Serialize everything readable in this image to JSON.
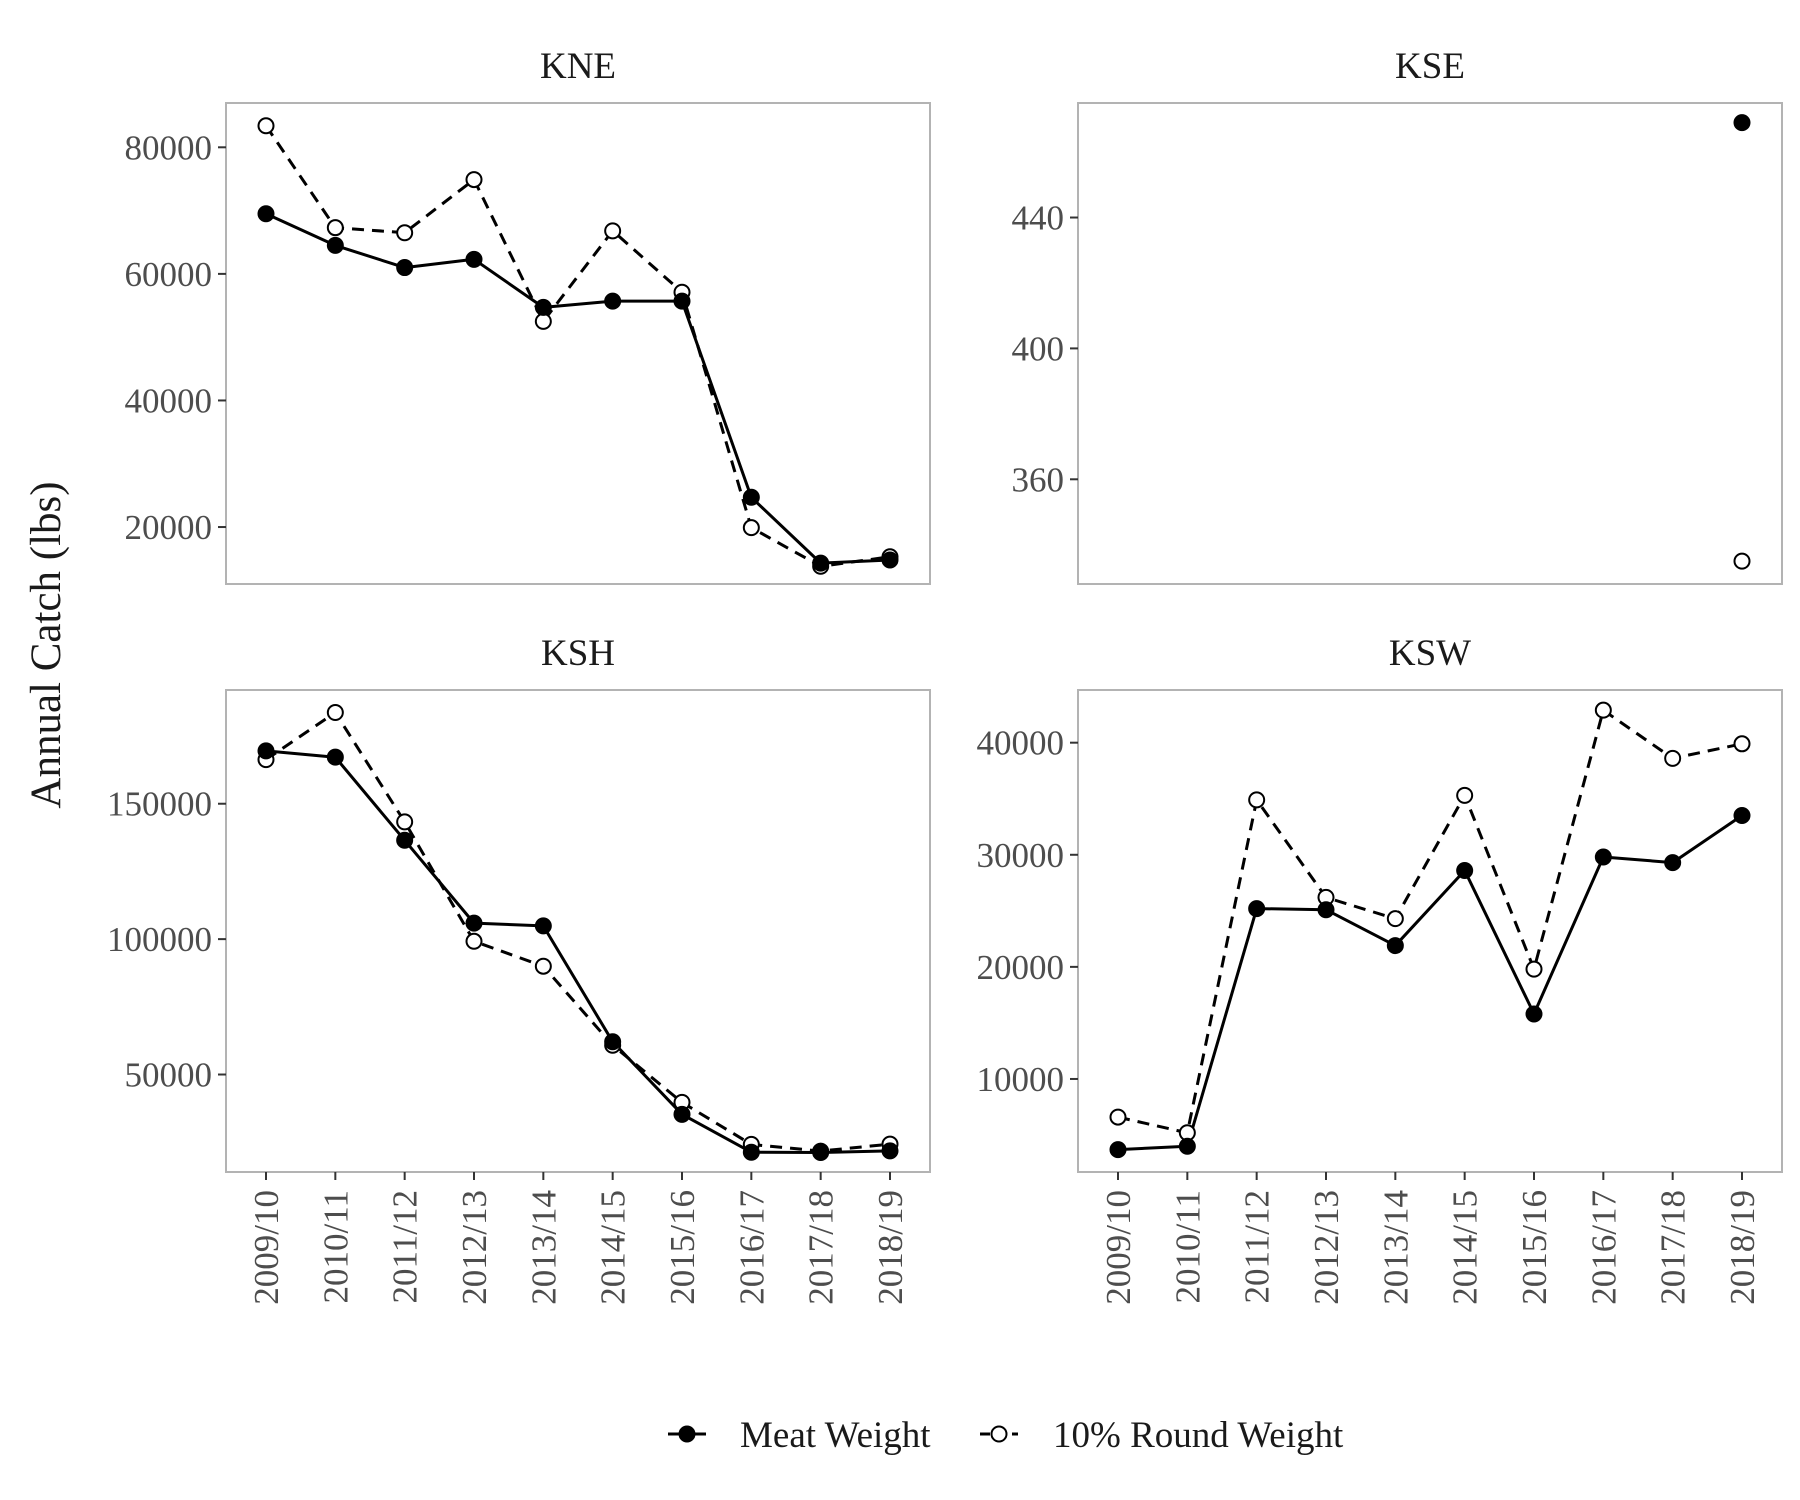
{
  "y_label": "Annual Catch (lbs)",
  "legend": {
    "items": [
      {
        "label": "Meat Weight",
        "marker": "filled-circle",
        "line": "solid"
      },
      {
        "label": "10% Round Weight",
        "marker": "open-circle",
        "line": "dashed"
      }
    ]
  },
  "colors": {
    "line": "#000000",
    "panel_border": "#b3b3b3",
    "tick_text": "#4d4d4d"
  },
  "chart_data": [
    {
      "type": "line",
      "title": "KNE",
      "categories": [
        "2009/10",
        "2010/11",
        "2011/12",
        "2012/13",
        "2013/14",
        "2014/15",
        "2015/16",
        "2016/17",
        "2017/18",
        "2018/19"
      ],
      "ylim": [
        11000,
        87000
      ],
      "y_ticks": [
        20000,
        40000,
        60000,
        80000
      ],
      "y_tick_labels": [
        "20000",
        "40000",
        "60000",
        "80000"
      ],
      "x_ticks_shown": false,
      "series": [
        {
          "name": "Meat Weight",
          "values": [
            69500,
            64500,
            61000,
            62300,
            54700,
            55700,
            55700,
            24700,
            14300,
            14800
          ]
        },
        {
          "name": "10% Round Weight",
          "values": [
            83400,
            67300,
            66500,
            74900,
            52500,
            66800,
            57100,
            19900,
            13800,
            15300
          ]
        }
      ]
    },
    {
      "type": "line",
      "title": "KSE",
      "categories": [
        "2009/10",
        "2010/11",
        "2011/12",
        "2012/13",
        "2013/14",
        "2014/15",
        "2015/16",
        "2016/17",
        "2017/18",
        "2018/19"
      ],
      "ylim": [
        328,
        475
      ],
      "y_ticks": [
        360,
        400,
        440
      ],
      "y_tick_labels": [
        "360",
        "400",
        "440"
      ],
      "x_ticks_shown": false,
      "series": [
        {
          "name": "Meat Weight",
          "values": [
            null,
            null,
            null,
            null,
            null,
            null,
            null,
            null,
            null,
            469
          ]
        },
        {
          "name": "10% Round Weight",
          "values": [
            null,
            null,
            null,
            null,
            null,
            null,
            null,
            null,
            null,
            335
          ]
        }
      ]
    },
    {
      "type": "line",
      "title": "KSH",
      "categories": [
        "2009/10",
        "2010/11",
        "2011/12",
        "2012/13",
        "2013/14",
        "2014/15",
        "2015/16",
        "2016/17",
        "2017/18",
        "2018/19"
      ],
      "ylim": [
        14000,
        192000
      ],
      "y_ticks": [
        50000,
        100000,
        150000
      ],
      "y_tick_labels": [
        "50000",
        "100000",
        "150000"
      ],
      "x_ticks_shown": true,
      "series": [
        {
          "name": "Meat Weight",
          "values": [
            169500,
            167200,
            136500,
            105900,
            104900,
            62100,
            35300,
            21300,
            21200,
            21800
          ]
        },
        {
          "name": "10% Round Weight",
          "values": [
            166300,
            183700,
            143300,
            99200,
            90000,
            60800,
            39700,
            24200,
            21700,
            24300
          ]
        }
      ]
    },
    {
      "type": "line",
      "title": "KSW",
      "categories": [
        "2009/10",
        "2010/11",
        "2011/12",
        "2012/13",
        "2013/14",
        "2014/15",
        "2015/16",
        "2016/17",
        "2017/18",
        "2018/19"
      ],
      "ylim": [
        1700,
        44700
      ],
      "y_ticks": [
        10000,
        20000,
        30000,
        40000
      ],
      "y_tick_labels": [
        "10000",
        "20000",
        "30000",
        "40000"
      ],
      "x_ticks_shown": true,
      "series": [
        {
          "name": "Meat Weight",
          "values": [
            3700,
            4000,
            25200,
            25100,
            21900,
            28600,
            15800,
            29800,
            29300,
            33500
          ]
        },
        {
          "name": "10% Round Weight",
          "values": [
            6600,
            5200,
            34900,
            26200,
            24300,
            35300,
            19800,
            42900,
            38600,
            39900
          ]
        }
      ]
    }
  ]
}
